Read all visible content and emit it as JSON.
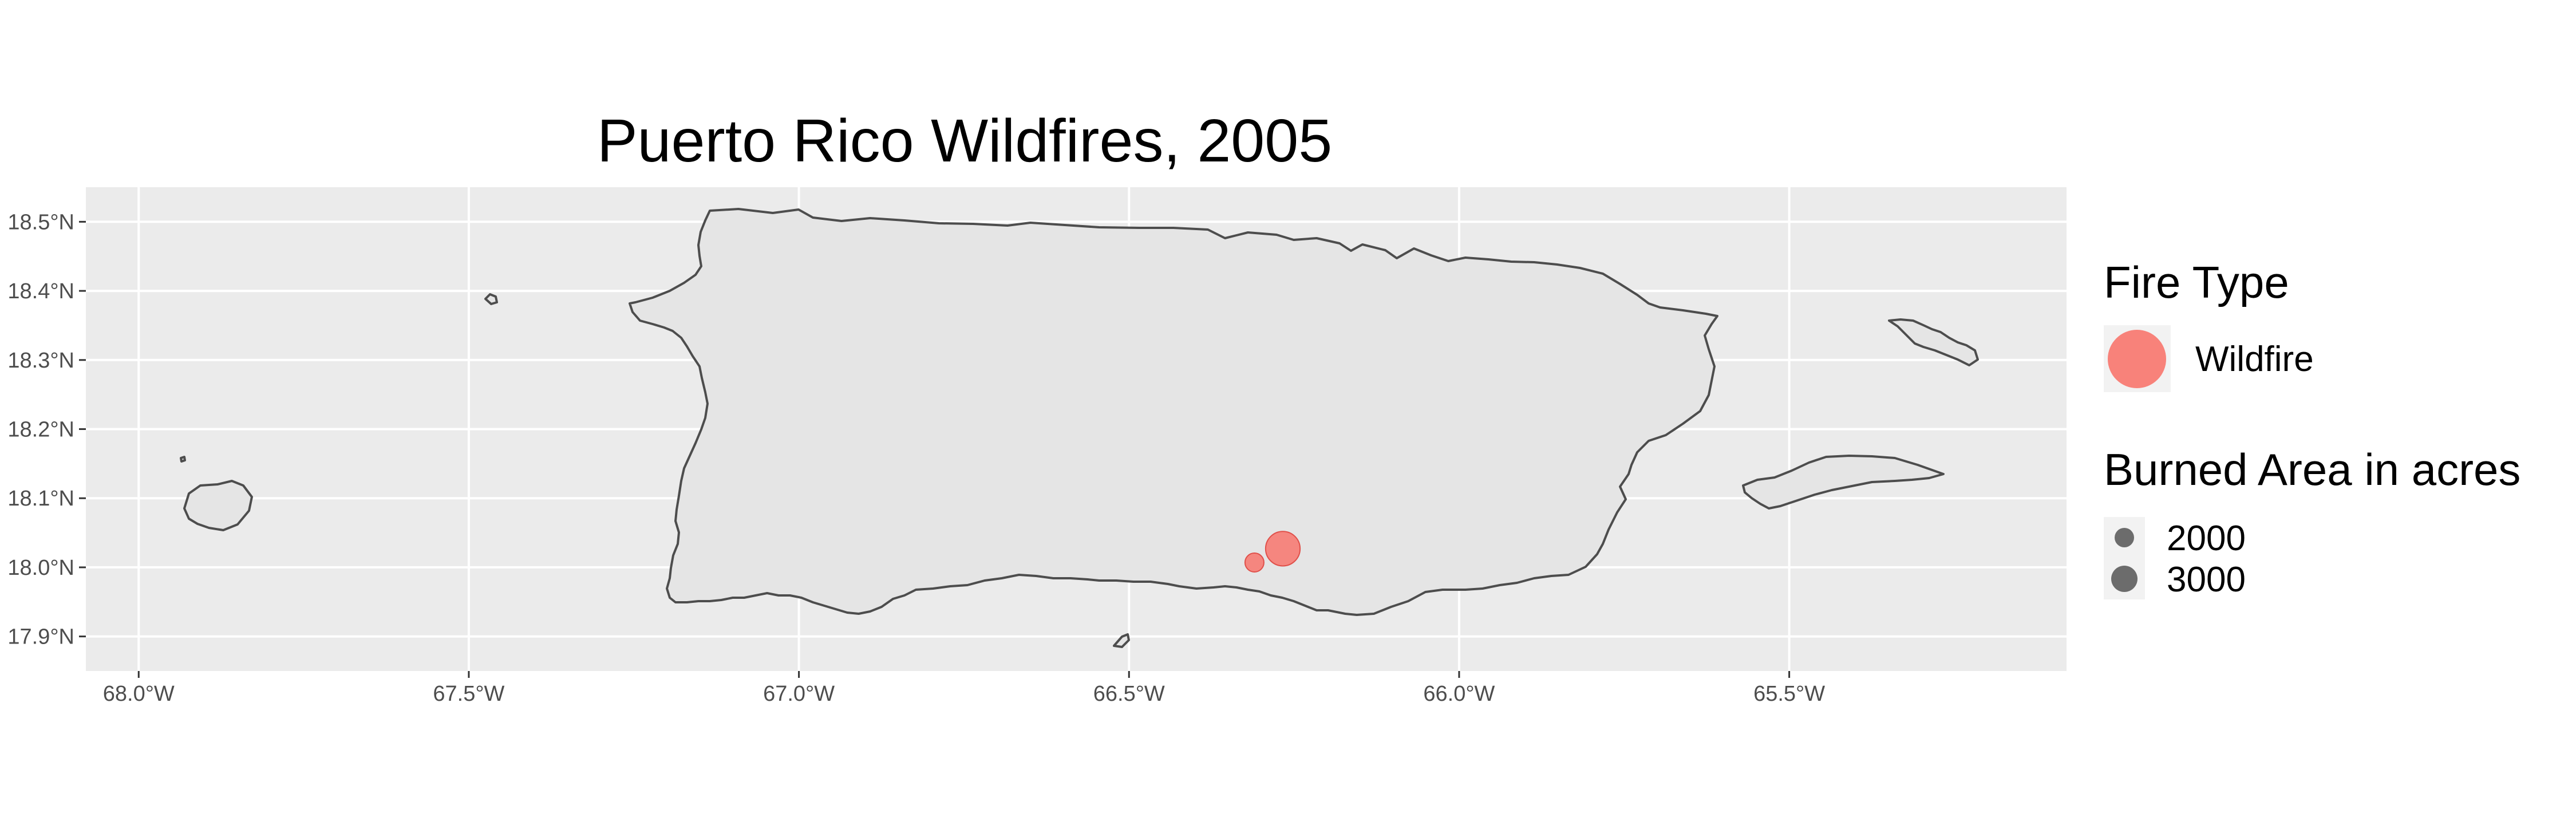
{
  "title": "Puerto Rico Wildfires, 2005",
  "map": {
    "x_ticks": [
      "68.0°W",
      "67.5°W",
      "67.0°W",
      "66.5°W",
      "66.0°W",
      "65.5°W"
    ],
    "y_ticks": [
      "18.5°N",
      "18.4°N",
      "18.3°N",
      "18.2°N",
      "18.1°N",
      "18.0°N",
      "17.9°N"
    ],
    "x_tick_values": [
      -68.0,
      -67.5,
      -67.0,
      -66.5,
      -66.0,
      -65.5
    ],
    "y_tick_values": [
      18.5,
      18.4,
      18.3,
      18.2,
      18.1,
      18.0,
      17.9
    ],
    "xlim": [
      -68.08,
      -65.08
    ],
    "ylim": [
      17.85,
      18.55
    ],
    "panel_color": "#ebebeb",
    "land_fill": "#e5e5e5",
    "coast_color": "#4d4d4d"
  },
  "fires": [
    {
      "lon": -66.267,
      "lat": 18.027,
      "acres": 3000,
      "type": "Wildfire"
    },
    {
      "lon": -66.31,
      "lat": 18.007,
      "acres": 900,
      "type": "Wildfire"
    }
  ],
  "legend": {
    "fire_type_title": "Fire Type",
    "fire_type_label": "Wildfire",
    "fire_color": "#f8766d",
    "area_title": "Burned Area in acres",
    "area_labels": [
      "2000",
      "3000"
    ]
  }
}
